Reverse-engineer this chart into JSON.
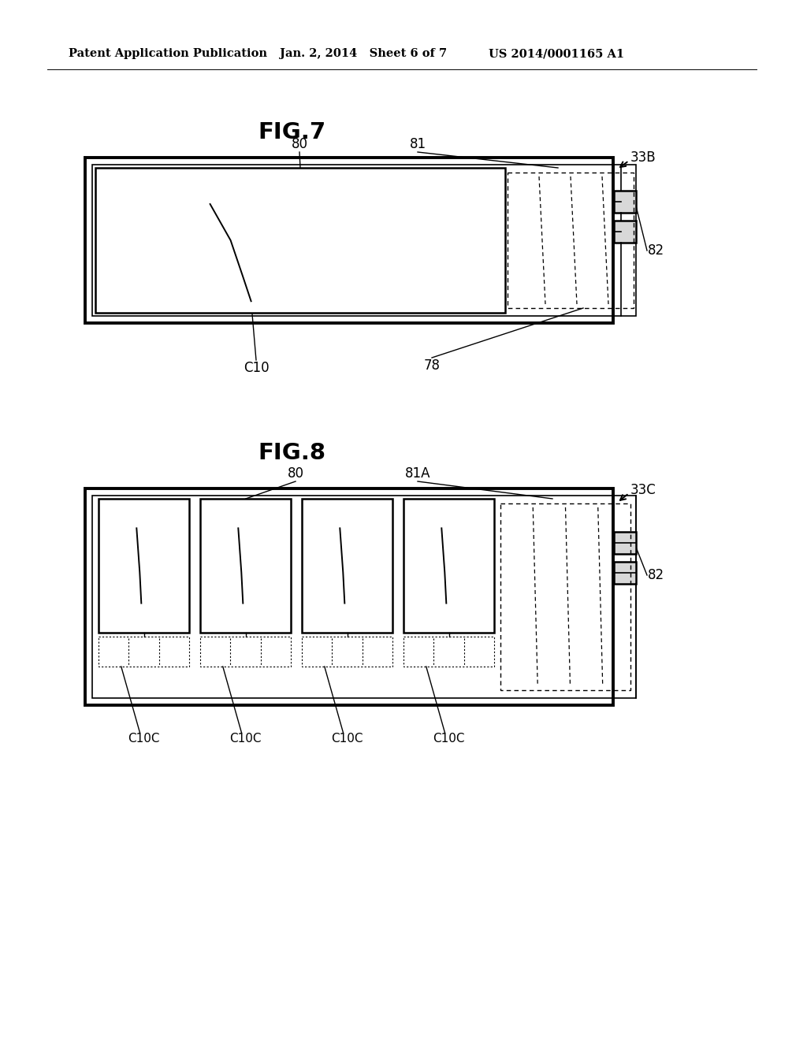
{
  "bg_color": "#ffffff",
  "text_color": "#000000",
  "header_left": "Patent Application Publication",
  "header_center": "Jan. 2, 2014   Sheet 6 of 7",
  "header_right": "US 2014/0001165 A1",
  "fig7_title": "FIG.7",
  "fig8_title": "FIG.8",
  "line_color": "#000000"
}
